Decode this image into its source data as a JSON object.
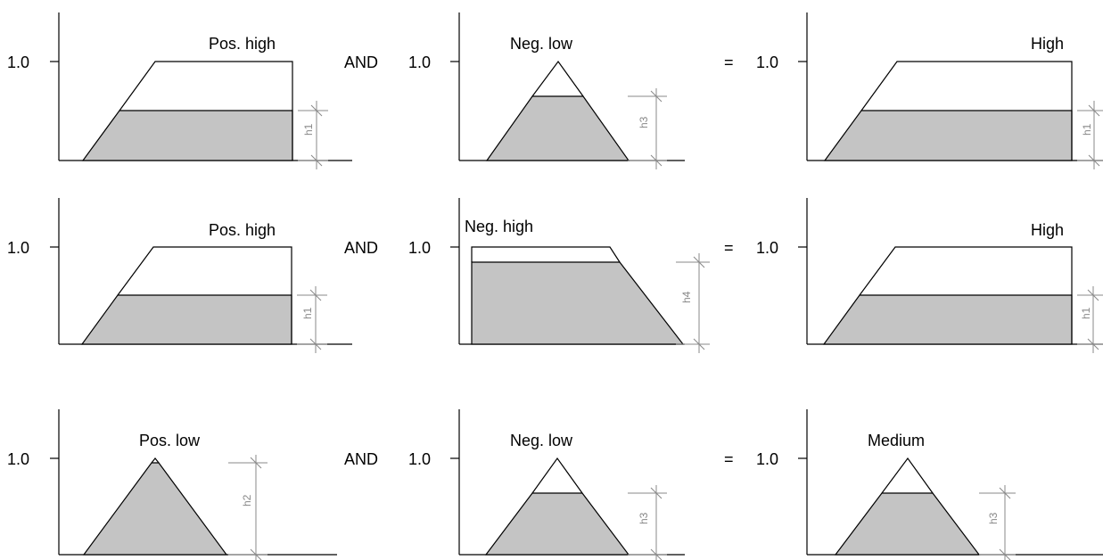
{
  "rows": [
    {
      "operator": "AND",
      "equals": "=",
      "panels": [
        {
          "y_tick": "1.0",
          "label": "Pos. high",
          "height_label": "h1",
          "level": 0.5
        },
        {
          "y_tick": "1.0",
          "label": "Neg. low",
          "height_label": "h3",
          "level": 0.65
        },
        {
          "y_tick": "1.0",
          "label": "High",
          "height_label": "h1",
          "level": 0.5
        }
      ]
    },
    {
      "operator": "AND",
      "equals": "=",
      "panels": [
        {
          "y_tick": "1.0",
          "label": "Pos. high",
          "height_label": "h1",
          "level": 0.5
        },
        {
          "y_tick": "1.0",
          "label": "Neg. high",
          "height_label": "h4",
          "level": 0.84
        },
        {
          "y_tick": "1.0",
          "label": "High",
          "height_label": "h1",
          "level": 0.5
        }
      ]
    },
    {
      "operator": "AND",
      "equals": "=",
      "panels": [
        {
          "y_tick": "1.0",
          "label": "Pos. low",
          "height_label": "h2",
          "level": 0.95
        },
        {
          "y_tick": "1.0",
          "label": "Neg. low",
          "height_label": "h3",
          "level": 0.65
        },
        {
          "y_tick": "1.0",
          "label": "Medium",
          "height_label": "h3",
          "level": 0.65
        }
      ]
    }
  ]
}
